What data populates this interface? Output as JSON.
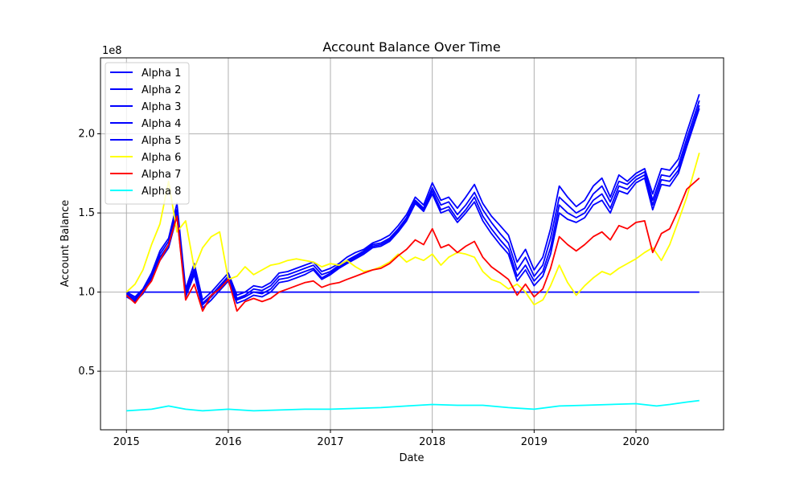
{
  "chart_data": {
    "type": "line",
    "title": "Account Balance Over Time",
    "xlabel": "Date",
    "ylabel": "Account Balance",
    "y_multiplier_label": "1e8",
    "y_unit": 100000000,
    "x_ticks": [
      "2015",
      "2016",
      "2017",
      "2018",
      "2019",
      "2020"
    ],
    "y_ticks": [
      "0.5",
      "1.0",
      "1.5",
      "2.0"
    ],
    "xlim": [
      "2014-09-30",
      "2020-11-10"
    ],
    "ylim": [
      0.13,
      2.48
    ],
    "grid": true,
    "legend_position": "upper left",
    "colors": {
      "background": "#ffffff",
      "grid": "#b0b0b0",
      "axis": "#000000"
    },
    "series": [
      {
        "name": "Alpha 1",
        "color": "#0000ff",
        "x": [
          "2015-01-01",
          "2020-08-15"
        ],
        "y": [
          1.0,
          1.0
        ]
      },
      {
        "name": "Alpha 2",
        "color": "#0000ff",
        "x": [
          "2015-01-01",
          "2015-02-01",
          "2015-03-01",
          "2015-04-01",
          "2015-05-01",
          "2015-06-01",
          "2015-07-01",
          "2015-08-01",
          "2015-09-01",
          "2015-10-01",
          "2015-11-01",
          "2015-12-01",
          "2016-01-01",
          "2016-02-01",
          "2016-03-01",
          "2016-04-01",
          "2016-05-01",
          "2016-06-01",
          "2016-07-01",
          "2016-08-01",
          "2016-09-01",
          "2016-10-01",
          "2016-11-01",
          "2016-12-01",
          "2017-01-01",
          "2017-02-01",
          "2017-03-01",
          "2017-04-01",
          "2017-05-01",
          "2017-06-01",
          "2017-07-01",
          "2017-08-01",
          "2017-09-01",
          "2017-10-01",
          "2017-11-01",
          "2017-12-01",
          "2018-01-01",
          "2018-02-01",
          "2018-03-01",
          "2018-04-01",
          "2018-05-01",
          "2018-06-01",
          "2018-07-01",
          "2018-08-01",
          "2018-09-01",
          "2018-10-01",
          "2018-11-01",
          "2018-12-01",
          "2019-01-01",
          "2019-02-01",
          "2019-03-01",
          "2019-04-01",
          "2019-05-01",
          "2019-06-01",
          "2019-07-01",
          "2019-08-01",
          "2019-09-01",
          "2019-10-01",
          "2019-11-01",
          "2019-12-01",
          "2020-01-01",
          "2020-02-01",
          "2020-03-01",
          "2020-04-01",
          "2020-05-01",
          "2020-06-01",
          "2020-07-01",
          "2020-08-15"
        ],
        "y": [
          1.0,
          0.97,
          1.02,
          1.12,
          1.26,
          1.34,
          1.56,
          1.02,
          1.18,
          0.95,
          1.0,
          1.06,
          1.12,
          0.98,
          1.0,
          1.04,
          1.03,
          1.06,
          1.12,
          1.13,
          1.15,
          1.17,
          1.19,
          1.13,
          1.15,
          1.18,
          1.22,
          1.25,
          1.27,
          1.31,
          1.33,
          1.36,
          1.42,
          1.49,
          1.6,
          1.55,
          1.69,
          1.58,
          1.6,
          1.53,
          1.6,
          1.68,
          1.56,
          1.48,
          1.42,
          1.36,
          1.19,
          1.27,
          1.14,
          1.22,
          1.4,
          1.67,
          1.6,
          1.54,
          1.58,
          1.67,
          1.72,
          1.6,
          1.74,
          1.7,
          1.75,
          1.78,
          1.62,
          1.78,
          1.77,
          1.84,
          2.01,
          2.25
        ]
      },
      {
        "name": "Alpha 3",
        "color": "#0000ff",
        "x": [
          "2015-01-01",
          "2015-02-01",
          "2015-03-01",
          "2015-04-01",
          "2015-05-01",
          "2015-06-01",
          "2015-07-01",
          "2015-08-01",
          "2015-09-01",
          "2015-10-01",
          "2015-11-01",
          "2015-12-01",
          "2016-01-01",
          "2016-02-01",
          "2016-03-01",
          "2016-04-01",
          "2016-05-01",
          "2016-06-01",
          "2016-07-01",
          "2016-08-01",
          "2016-09-01",
          "2016-10-01",
          "2016-11-01",
          "2016-12-01",
          "2017-01-01",
          "2017-02-01",
          "2017-03-01",
          "2017-04-01",
          "2017-05-01",
          "2017-06-01",
          "2017-07-01",
          "2017-08-01",
          "2017-09-01",
          "2017-10-01",
          "2017-11-01",
          "2017-12-01",
          "2018-01-01",
          "2018-02-01",
          "2018-03-01",
          "2018-04-01",
          "2018-05-01",
          "2018-06-01",
          "2018-07-01",
          "2018-08-01",
          "2018-09-01",
          "2018-10-01",
          "2018-11-01",
          "2018-12-01",
          "2019-01-01",
          "2019-02-01",
          "2019-03-01",
          "2019-04-01",
          "2019-05-01",
          "2019-06-01",
          "2019-07-01",
          "2019-08-01",
          "2019-09-01",
          "2019-10-01",
          "2019-11-01",
          "2019-12-01",
          "2020-01-01",
          "2020-02-01",
          "2020-03-01",
          "2020-04-01",
          "2020-05-01",
          "2020-06-01",
          "2020-07-01",
          "2020-08-15"
        ],
        "y": [
          0.99,
          0.96,
          1.01,
          1.1,
          1.24,
          1.32,
          1.52,
          1.0,
          1.15,
          0.93,
          0.98,
          1.04,
          1.1,
          0.96,
          0.98,
          1.02,
          1.01,
          1.04,
          1.1,
          1.11,
          1.13,
          1.15,
          1.17,
          1.11,
          1.13,
          1.17,
          1.2,
          1.23,
          1.26,
          1.3,
          1.31,
          1.34,
          1.4,
          1.47,
          1.58,
          1.53,
          1.66,
          1.55,
          1.57,
          1.49,
          1.55,
          1.63,
          1.52,
          1.44,
          1.37,
          1.31,
          1.14,
          1.22,
          1.1,
          1.17,
          1.34,
          1.6,
          1.55,
          1.5,
          1.53,
          1.62,
          1.67,
          1.57,
          1.7,
          1.68,
          1.73,
          1.76,
          1.58,
          1.74,
          1.73,
          1.8,
          1.97,
          2.21
        ]
      },
      {
        "name": "Alpha 4",
        "color": "#0000ff",
        "x": [
          "2015-01-01",
          "2015-02-01",
          "2015-03-01",
          "2015-04-01",
          "2015-05-01",
          "2015-06-01",
          "2015-07-01",
          "2015-08-01",
          "2015-09-01",
          "2015-10-01",
          "2015-11-01",
          "2015-12-01",
          "2016-01-01",
          "2016-02-01",
          "2016-03-01",
          "2016-04-01",
          "2016-05-01",
          "2016-06-01",
          "2016-07-01",
          "2016-08-01",
          "2016-09-01",
          "2016-10-01",
          "2016-11-01",
          "2016-12-01",
          "2017-01-01",
          "2017-02-01",
          "2017-03-01",
          "2017-04-01",
          "2017-05-01",
          "2017-06-01",
          "2017-07-01",
          "2017-08-01",
          "2017-09-01",
          "2017-10-01",
          "2017-11-01",
          "2017-12-01",
          "2018-01-01",
          "2018-02-01",
          "2018-03-01",
          "2018-04-01",
          "2018-05-01",
          "2018-06-01",
          "2018-07-01",
          "2018-08-01",
          "2018-09-01",
          "2018-10-01",
          "2018-11-01",
          "2018-12-01",
          "2019-01-01",
          "2019-02-01",
          "2019-03-01",
          "2019-04-01",
          "2019-05-01",
          "2019-06-01",
          "2019-07-01",
          "2019-08-01",
          "2019-09-01",
          "2019-10-01",
          "2019-11-01",
          "2019-12-01",
          "2020-01-01",
          "2020-02-01",
          "2020-03-01",
          "2020-04-01",
          "2020-05-01",
          "2020-06-01",
          "2020-07-01",
          "2020-08-15"
        ],
        "y": [
          0.98,
          0.95,
          1.0,
          1.09,
          1.22,
          1.3,
          1.5,
          0.99,
          1.13,
          0.92,
          0.97,
          1.03,
          1.09,
          0.95,
          0.97,
          1.0,
          0.99,
          1.02,
          1.08,
          1.09,
          1.11,
          1.13,
          1.15,
          1.09,
          1.12,
          1.16,
          1.19,
          1.22,
          1.25,
          1.29,
          1.3,
          1.33,
          1.39,
          1.46,
          1.57,
          1.52,
          1.64,
          1.52,
          1.54,
          1.46,
          1.52,
          1.6,
          1.48,
          1.4,
          1.33,
          1.27,
          1.1,
          1.17,
          1.07,
          1.13,
          1.28,
          1.55,
          1.5,
          1.47,
          1.5,
          1.58,
          1.62,
          1.53,
          1.67,
          1.65,
          1.71,
          1.74,
          1.55,
          1.71,
          1.7,
          1.77,
          1.94,
          2.18
        ]
      },
      {
        "name": "Alpha 5",
        "color": "#0000ff",
        "x": [
          "2015-01-01",
          "2015-02-01",
          "2015-03-01",
          "2015-04-01",
          "2015-05-01",
          "2015-06-01",
          "2015-07-01",
          "2015-08-01",
          "2015-09-01",
          "2015-10-01",
          "2015-11-01",
          "2015-12-01",
          "2016-01-01",
          "2016-02-01",
          "2016-03-01",
          "2016-04-01",
          "2016-05-01",
          "2016-06-01",
          "2016-07-01",
          "2016-08-01",
          "2016-09-01",
          "2016-10-01",
          "2016-11-01",
          "2016-12-01",
          "2017-01-01",
          "2017-02-01",
          "2017-03-01",
          "2017-04-01",
          "2017-05-01",
          "2017-06-01",
          "2017-07-01",
          "2017-08-01",
          "2017-09-01",
          "2017-10-01",
          "2017-11-01",
          "2017-12-01",
          "2018-01-01",
          "2018-02-01",
          "2018-03-01",
          "2018-04-01",
          "2018-05-01",
          "2018-06-01",
          "2018-07-01",
          "2018-08-01",
          "2018-09-01",
          "2018-10-01",
          "2018-11-01",
          "2018-12-01",
          "2019-01-01",
          "2019-02-01",
          "2019-03-01",
          "2019-04-01",
          "2019-05-01",
          "2019-06-01",
          "2019-07-01",
          "2019-08-01",
          "2019-09-01",
          "2019-10-01",
          "2019-11-01",
          "2019-12-01",
          "2020-01-01",
          "2020-02-01",
          "2020-03-01",
          "2020-04-01",
          "2020-05-01",
          "2020-06-01",
          "2020-07-01",
          "2020-08-15"
        ],
        "y": [
          0.97,
          0.94,
          0.99,
          1.08,
          1.2,
          1.28,
          1.48,
          0.97,
          1.11,
          0.9,
          0.95,
          1.01,
          1.07,
          0.93,
          0.95,
          0.98,
          0.97,
          1.0,
          1.06,
          1.07,
          1.09,
          1.11,
          1.14,
          1.08,
          1.11,
          1.15,
          1.18,
          1.21,
          1.24,
          1.28,
          1.29,
          1.32,
          1.38,
          1.45,
          1.56,
          1.51,
          1.62,
          1.5,
          1.52,
          1.44,
          1.5,
          1.57,
          1.45,
          1.37,
          1.3,
          1.24,
          1.07,
          1.14,
          1.04,
          1.1,
          1.24,
          1.5,
          1.46,
          1.44,
          1.47,
          1.55,
          1.58,
          1.5,
          1.64,
          1.62,
          1.69,
          1.72,
          1.52,
          1.68,
          1.67,
          1.75,
          1.92,
          2.16
        ]
      },
      {
        "name": "Alpha 6",
        "color": "#ffff00",
        "x": [
          "2015-01-01",
          "2015-02-01",
          "2015-03-01",
          "2015-04-01",
          "2015-05-01",
          "2015-06-01",
          "2015-07-01",
          "2015-08-01",
          "2015-09-01",
          "2015-10-01",
          "2015-11-01",
          "2015-12-01",
          "2016-01-01",
          "2016-02-01",
          "2016-03-01",
          "2016-04-01",
          "2016-05-01",
          "2016-06-01",
          "2016-07-01",
          "2016-08-01",
          "2016-09-01",
          "2016-10-01",
          "2016-11-01",
          "2016-12-01",
          "2017-01-01",
          "2017-02-01",
          "2017-03-01",
          "2017-04-01",
          "2017-05-01",
          "2017-06-01",
          "2017-07-01",
          "2017-08-01",
          "2017-09-01",
          "2017-10-01",
          "2017-11-01",
          "2017-12-01",
          "2018-01-01",
          "2018-02-01",
          "2018-03-01",
          "2018-04-01",
          "2018-05-01",
          "2018-06-01",
          "2018-07-01",
          "2018-08-01",
          "2018-09-01",
          "2018-10-01",
          "2018-11-01",
          "2018-12-01",
          "2019-01-01",
          "2019-02-01",
          "2019-03-01",
          "2019-04-01",
          "2019-05-01",
          "2019-06-01",
          "2019-07-01",
          "2019-08-01",
          "2019-09-01",
          "2019-10-01",
          "2019-11-01",
          "2019-12-01",
          "2020-01-01",
          "2020-02-01",
          "2020-03-01",
          "2020-04-01",
          "2020-05-01",
          "2020-06-01",
          "2020-07-01",
          "2020-08-15"
        ],
        "y": [
          1.0,
          1.05,
          1.14,
          1.3,
          1.43,
          1.7,
          1.38,
          1.45,
          1.15,
          1.28,
          1.35,
          1.38,
          1.08,
          1.1,
          1.16,
          1.11,
          1.14,
          1.17,
          1.18,
          1.2,
          1.21,
          1.2,
          1.19,
          1.16,
          1.18,
          1.17,
          1.2,
          1.16,
          1.13,
          1.14,
          1.16,
          1.19,
          1.24,
          1.19,
          1.22,
          1.2,
          1.24,
          1.17,
          1.22,
          1.25,
          1.24,
          1.22,
          1.13,
          1.08,
          1.06,
          1.02,
          1.05,
          1.0,
          0.92,
          0.95,
          1.04,
          1.17,
          1.06,
          0.98,
          1.04,
          1.09,
          1.13,
          1.11,
          1.15,
          1.18,
          1.21,
          1.25,
          1.28,
          1.2,
          1.3,
          1.45,
          1.6,
          1.88
        ]
      },
      {
        "name": "Alpha 7",
        "color": "#ff0000",
        "x": [
          "2015-01-01",
          "2015-02-01",
          "2015-03-01",
          "2015-04-01",
          "2015-05-01",
          "2015-06-01",
          "2015-07-01",
          "2015-08-01",
          "2015-09-01",
          "2015-10-01",
          "2015-11-01",
          "2015-12-01",
          "2016-01-01",
          "2016-02-01",
          "2016-03-01",
          "2016-04-01",
          "2016-05-01",
          "2016-06-01",
          "2016-07-01",
          "2016-08-01",
          "2016-09-01",
          "2016-10-01",
          "2016-11-01",
          "2016-12-01",
          "2017-01-01",
          "2017-02-01",
          "2017-03-01",
          "2017-04-01",
          "2017-05-01",
          "2017-06-01",
          "2017-07-01",
          "2017-08-01",
          "2017-09-01",
          "2017-10-01",
          "2017-11-01",
          "2017-12-01",
          "2018-01-01",
          "2018-02-01",
          "2018-03-01",
          "2018-04-01",
          "2018-05-01",
          "2018-06-01",
          "2018-07-01",
          "2018-08-01",
          "2018-09-01",
          "2018-10-01",
          "2018-11-01",
          "2018-12-01",
          "2019-01-01",
          "2019-02-01",
          "2019-03-01",
          "2019-04-01",
          "2019-05-01",
          "2019-06-01",
          "2019-07-01",
          "2019-08-01",
          "2019-09-01",
          "2019-10-01",
          "2019-11-01",
          "2019-12-01",
          "2020-01-01",
          "2020-02-01",
          "2020-03-01",
          "2020-04-01",
          "2020-05-01",
          "2020-06-01",
          "2020-07-01",
          "2020-08-15"
        ],
        "y": [
          0.98,
          0.93,
          1.0,
          1.07,
          1.2,
          1.3,
          1.48,
          0.95,
          1.05,
          0.88,
          0.98,
          1.02,
          1.08,
          0.88,
          0.94,
          0.96,
          0.94,
          0.96,
          1.0,
          1.02,
          1.04,
          1.06,
          1.07,
          1.03,
          1.05,
          1.06,
          1.08,
          1.1,
          1.12,
          1.14,
          1.15,
          1.18,
          1.23,
          1.27,
          1.33,
          1.3,
          1.4,
          1.28,
          1.3,
          1.25,
          1.29,
          1.32,
          1.22,
          1.16,
          1.12,
          1.08,
          0.98,
          1.05,
          0.97,
          1.02,
          1.15,
          1.35,
          1.3,
          1.26,
          1.3,
          1.35,
          1.38,
          1.33,
          1.42,
          1.4,
          1.44,
          1.45,
          1.25,
          1.37,
          1.4,
          1.52,
          1.65,
          1.72
        ]
      },
      {
        "name": "Alpha 8",
        "color": "#00ffff",
        "x": [
          "2015-01-01",
          "2015-04-01",
          "2015-06-01",
          "2015-08-01",
          "2015-10-01",
          "2016-01-01",
          "2016-04-01",
          "2016-07-01",
          "2016-10-01",
          "2017-01-01",
          "2017-04-01",
          "2017-07-01",
          "2017-10-01",
          "2018-01-01",
          "2018-04-01",
          "2018-07-01",
          "2018-10-01",
          "2019-01-01",
          "2019-04-01",
          "2019-07-01",
          "2019-10-01",
          "2020-01-01",
          "2020-03-15",
          "2020-05-01",
          "2020-07-01",
          "2020-08-15"
        ],
        "y": [
          0.25,
          0.26,
          0.28,
          0.26,
          0.25,
          0.26,
          0.25,
          0.255,
          0.26,
          0.26,
          0.265,
          0.27,
          0.28,
          0.29,
          0.285,
          0.285,
          0.27,
          0.26,
          0.28,
          0.285,
          0.29,
          0.295,
          0.28,
          0.29,
          0.305,
          0.315
        ]
      }
    ]
  }
}
